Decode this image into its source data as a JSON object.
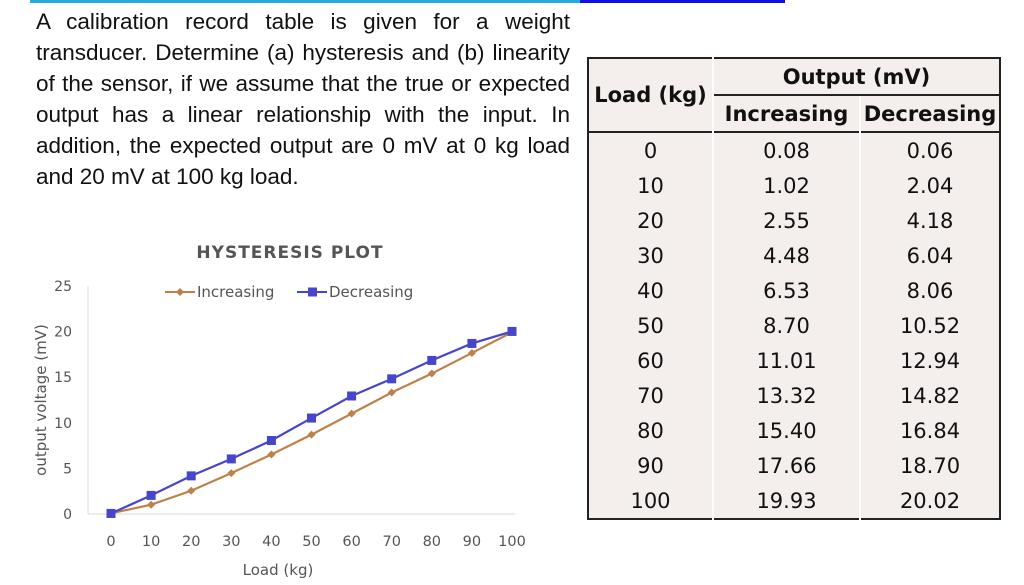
{
  "problem_text": "A calibration record table is given for a weight transducer. Determine (a) hysteresis and (b) linearity of the sensor, if we assume that the true or expected output has a linear relationship with the input. In addition, the expected output are 0 mV at 0 kg load and 20 mV at 100 kg load.",
  "table": {
    "col_load": "Load (kg)",
    "col_output": "Output (mV)",
    "col_increasing": "Increasing",
    "col_decreasing": "Decreasing",
    "rows": [
      [
        "0",
        "0.08",
        "0.06"
      ],
      [
        "10",
        "1.02",
        "2.04"
      ],
      [
        "20",
        "2.55",
        "4.18"
      ],
      [
        "30",
        "4.48",
        "6.04"
      ],
      [
        "40",
        "6.53",
        "8.06"
      ],
      [
        "50",
        "8.70",
        "10.52"
      ],
      [
        "60",
        "11.01",
        "12.94"
      ],
      [
        "70",
        "13.32",
        "14.82"
      ],
      [
        "80",
        "15.40",
        "16.84"
      ],
      [
        "90",
        "17.66",
        "18.70"
      ],
      [
        "100",
        "19.93",
        "20.02"
      ]
    ]
  },
  "chart_data": {
    "type": "line",
    "title": "HYSTERESIS PLOT",
    "xlabel": "Load (kg)",
    "ylabel": "output voltage (mV)",
    "x": [
      0,
      10,
      20,
      30,
      40,
      50,
      60,
      70,
      80,
      90,
      100
    ],
    "ylim": [
      0,
      25
    ],
    "yticks": [
      0,
      5,
      10,
      15,
      20,
      25
    ],
    "grid": false,
    "legend": "top",
    "series": [
      {
        "name": "Increasing",
        "color": "#c0804a",
        "marker": "diamond",
        "values": [
          0.08,
          1.02,
          2.55,
          4.48,
          6.53,
          8.7,
          11.01,
          13.32,
          15.4,
          17.66,
          19.93
        ]
      },
      {
        "name": "Decreasing",
        "color": "#4646c8",
        "marker": "square",
        "values": [
          0.06,
          2.04,
          4.18,
          6.04,
          8.06,
          10.52,
          12.94,
          14.82,
          16.84,
          18.7,
          20.02
        ]
      }
    ]
  }
}
